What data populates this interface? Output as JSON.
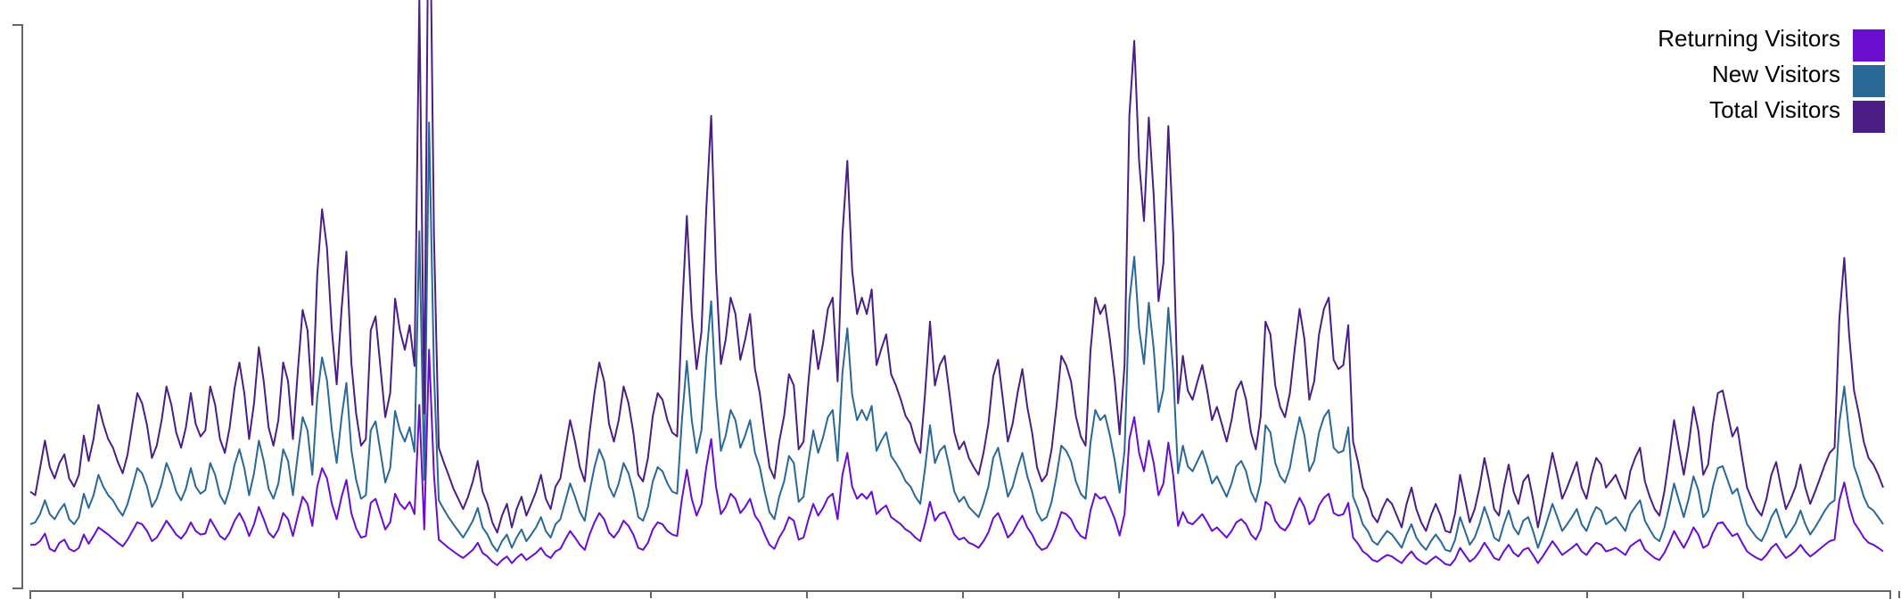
{
  "chart_data": {
    "type": "line",
    "title": "",
    "xlabel": "",
    "ylabel": "",
    "grid": false,
    "legend_position": "top-right",
    "x_tick_count": 12,
    "ylim": [
      0,
      1100
    ],
    "series": [
      {
        "name": "Returning Visitors",
        "color": "#6a0dcf",
        "values": [
          68,
          68,
          75,
          90,
          60,
          55,
          72,
          78,
          60,
          55,
          62,
          88,
          70,
          85,
          102,
          95,
          88,
          80,
          72,
          65,
          78,
          95,
          112,
          108,
          95,
          75,
          82,
          98,
          115,
          102,
          88,
          80,
          92,
          112,
          95,
          88,
          90,
          118,
          102,
          85,
          78,
          92,
          115,
          130,
          112,
          85,
          108,
          142,
          118,
          92,
          82,
          98,
          130,
          118,
          85,
          125,
          162,
          148,
          105,
          182,
          218,
          198,
          148,
          118,
          162,
          195,
          130,
          100,
          82,
          85,
          150,
          158,
          128,
          98,
          112,
          168,
          148,
          138,
          152,
          128,
          342,
          98,
          450,
          205,
          78,
          70,
          62,
          55,
          48,
          42,
          50,
          58,
          72,
          52,
          45,
          35,
          28,
          38,
          45,
          32,
          42,
          50,
          38,
          45,
          52,
          62,
          48,
          42,
          55,
          60,
          78,
          95,
          82,
          68,
          58,
          88,
          112,
          130,
          118,
          92,
          82,
          95,
          115,
          105,
          88,
          62,
          58,
          72,
          98,
          112,
          108,
          95,
          88,
          85,
          158,
          215,
          158,
          125,
          148,
          220,
          275,
          182,
          128,
          142,
          168,
          158,
          130,
          142,
          158,
          125,
          112,
          88,
          68,
          60,
          82,
          98,
          122,
          115,
          78,
          82,
          118,
          148,
          125,
          140,
          160,
          168,
          118,
          205,
          248,
          182,
          158,
          168,
          158,
          172,
          128,
          138,
          145,
          122,
          115,
          108,
          98,
          92,
          82,
          75,
          110,
          152,
          115,
          128,
          132,
          112,
          88,
          78,
          82,
          72,
          68,
          62,
          75,
          92,
          120,
          130,
          108,
          82,
          92,
          110,
          125,
          102,
          88,
          68,
          58,
          62,
          78,
          102,
          132,
          128,
          118,
          98,
          85,
          80,
          135,
          168,
          158,
          162,
          142,
          118,
          86,
          128,
          275,
          318,
          248,
          212,
          272,
          228,
          165,
          188,
          268,
          205,
          105,
          132,
          112,
          108,
          118,
          128,
          112,
          95,
          102,
          92,
          82,
          95,
          112,
          118,
          108,
          88,
          78,
          98,
          152,
          145,
          115,
          102,
          96,
          110,
          138,
          160,
          142,
          108,
          118,
          145,
          160,
          168,
          130,
          125,
          128,
          150,
          82,
          70,
          55,
          48,
          38,
          35,
          42,
          48,
          45,
          38,
          32,
          45,
          55,
          42,
          35,
          30,
          38,
          45,
          38,
          30,
          28,
          40,
          62,
          48,
          35,
          42,
          55,
          72,
          58,
          42,
          38,
          55,
          68,
          52,
          45,
          58,
          62,
          48,
          32,
          45,
          60,
          75,
          62,
          48,
          55,
          62,
          70,
          55,
          48,
          62,
          72,
          68,
          55,
          58,
          62,
          55,
          48,
          65,
          72,
          78,
          58,
          50,
          42,
          38,
          52,
          72,
          95,
          78,
          62,
          80,
          102,
          88,
          62,
          68,
          92,
          110,
          112,
          98,
          85,
          90,
          72,
          55,
          48,
          42,
          38,
          48,
          62,
          70,
          55,
          42,
          48,
          56,
          68,
          55,
          45,
          52,
          60,
          68,
          75,
          78,
          155,
          190,
          145,
          112,
          98,
          82,
          72,
          68,
          62,
          55
        ]
      },
      {
        "name": "New Visitors",
        "color": "#2a6898",
        "values": [
          108,
          112,
          128,
          155,
          128,
          118,
          135,
          148,
          118,
          108,
          122,
          168,
          140,
          165,
          205,
          182,
          165,
          155,
          138,
          125,
          148,
          182,
          218,
          208,
          182,
          142,
          158,
          188,
          228,
          205,
          172,
          155,
          178,
          218,
          182,
          168,
          175,
          228,
          205,
          165,
          148,
          178,
          225,
          255,
          218,
          165,
          208,
          272,
          232,
          178,
          158,
          188,
          255,
          232,
          165,
          245,
          318,
          292,
          205,
          358,
          435,
          390,
          292,
          228,
          318,
          385,
          255,
          195,
          158,
          165,
          292,
          310,
          250,
          190,
          218,
          330,
          292,
          270,
          298,
          250,
          682,
          195,
          895,
          405,
          155,
          138,
          122,
          108,
          95,
          82,
          98,
          115,
          140,
          102,
          88,
          68,
          55,
          75,
          88,
          62,
          82,
          98,
          75,
          88,
          102,
          122,
          95,
          82,
          108,
          118,
          152,
          188,
          162,
          132,
          115,
          172,
          220,
          255,
          232,
          182,
          162,
          188,
          228,
          208,
          172,
          122,
          115,
          142,
          192,
          220,
          212,
          188,
          172,
          168,
          312,
          428,
          312,
          248,
          292,
          435,
          545,
          362,
          252,
          282,
          332,
          312,
          258,
          282,
          312,
          248,
          220,
          172,
          132,
          118,
          162,
          192,
          242,
          228,
          152,
          162,
          232,
          292,
          248,
          278,
          318,
          332,
          232,
          405,
          492,
          362,
          312,
          332,
          312,
          340,
          252,
          272,
          288,
          242,
          228,
          212,
          192,
          182,
          162,
          148,
          218,
          302,
          228,
          252,
          262,
          220,
          172,
          152,
          162,
          142,
          132,
          122,
          148,
          182,
          238,
          258,
          212,
          162,
          182,
          218,
          248,
          202,
          172,
          132,
          115,
          122,
          152,
          202,
          262,
          252,
          232,
          192,
          168,
          158,
          268,
          332,
          312,
          322,
          282,
          232,
          170,
          252,
          545,
          632,
          492,
          422,
          542,
          452,
          328,
          372,
          532,
          408,
          208,
          262,
          222,
          212,
          232,
          252,
          222,
          188,
          202,
          182,
          162,
          188,
          222,
          232,
          212,
          172,
          152,
          192,
          302,
          288,
          228,
          202,
          190,
          218,
          272,
          318,
          282,
          212,
          232,
          288,
          318,
          332,
          258,
          248,
          252,
          298,
          162,
          138,
          108,
          95,
          75,
          68,
          82,
          95,
          88,
          75,
          62,
          88,
          108,
          82,
          68,
          58,
          75,
          88,
          75,
          58,
          55,
          78,
          122,
          95,
          68,
          82,
          108,
          142,
          115,
          82,
          75,
          108,
          135,
          102,
          88,
          115,
          122,
          95,
          62,
          88,
          118,
          148,
          122,
          95,
          108,
          122,
          138,
          108,
          95,
          122,
          142,
          135,
          108,
          115,
          122,
          108,
          95,
          128,
          142,
          155,
          115,
          98,
          82,
          75,
          102,
          142,
          188,
          155,
          122,
          158,
          202,
          175,
          122,
          135,
          182,
          218,
          222,
          195,
          168,
          178,
          142,
          108,
          95,
          82,
          75,
          95,
          122,
          138,
          108,
          82,
          95,
          110,
          135,
          108,
          88,
          102,
          118,
          135,
          148,
          155,
          308,
          378,
          288,
          222,
          195,
          162,
          142,
          135,
          122,
          108
        ]
      },
      {
        "name": "Total Visitors",
        "color": "#4a1e84",
        "values": [
          172,
          165,
          218,
          272,
          220,
          198,
          228,
          245,
          198,
          182,
          205,
          282,
          232,
          275,
          342,
          305,
          275,
          258,
          230,
          208,
          245,
          305,
          365,
          345,
          302,
          238,
          262,
          312,
          378,
          342,
          288,
          258,
          298,
          365,
          305,
          280,
          292,
          378,
          342,
          275,
          248,
          298,
          375,
          425,
          365,
          275,
          345,
          455,
          388,
          298,
          262,
          312,
          425,
          388,
          275,
          408,
          528,
          488,
          342,
          598,
          725,
          650,
          488,
          382,
          530,
          642,
          425,
          325,
          262,
          275,
          488,
          515,
          415,
          318,
          365,
          550,
          488,
          450,
          498,
          418,
          1138,
          325,
          1492,
          675,
          258,
          230,
          205,
          178,
          158,
          138,
          162,
          192,
          232,
          172,
          148,
          112,
          92,
          125,
          148,
          102,
          138,
          162,
          125,
          148,
          172,
          205,
          158,
          138,
          182,
          198,
          255,
          312,
          270,
          220,
          192,
          288,
          365,
          425,
          388,
          305,
          270,
          312,
          378,
          345,
          288,
          205,
          192,
          238,
          320,
          365,
          352,
          312,
          288,
          280,
          520,
          712,
          520,
          412,
          485,
          725,
          908,
          605,
          422,
          470,
          552,
          520,
          430,
          470,
          520,
          412,
          365,
          288,
          220,
          198,
          270,
          320,
          402,
          380,
          255,
          270,
          388,
          488,
          412,
          462,
          530,
          552,
          388,
          675,
          820,
          605,
          520,
          552,
          520,
          568,
          420,
          452,
          480,
          402,
          380,
          352,
          320,
          305,
          270,
          248,
          365,
          505,
          380,
          420,
          438,
          365,
          288,
          255,
          270,
          238,
          220,
          205,
          248,
          305,
          398,
          430,
          352,
          270,
          305,
          365,
          412,
          338,
          288,
          220,
          192,
          205,
          255,
          338,
          438,
          420,
          388,
          320,
          280,
          262,
          448,
          552,
          520,
          538,
          470,
          388,
          284,
          420,
          908,
          1055,
          820,
          702,
          905,
          752,
          545,
          620,
          888,
          680,
          345,
          438,
          370,
          352,
          388,
          420,
          370,
          312,
          338,
          305,
          270,
          312,
          370,
          388,
          352,
          288,
          255,
          320,
          505,
          480,
          380,
          338,
          318,
          365,
          452,
          530,
          470,
          352,
          388,
          480,
          530,
          552,
          430,
          412,
          420,
          498,
          270,
          230,
          180,
          158,
          125,
          112,
          138,
          158,
          148,
          125,
          102,
          148,
          180,
          138,
          112,
          95,
          125,
          148,
          125,
          95,
          92,
          130,
          205,
          158,
          112,
          138,
          180,
          238,
          192,
          138,
          125,
          180,
          225,
          172,
          148,
          192,
          205,
          158,
          102,
          148,
          198,
          248,
          205,
          158,
          180,
          205,
          230,
          180,
          158,
          205,
          238,
          225,
          180,
          192,
          205,
          180,
          158,
          212,
          238,
          258,
          192,
          162,
          138,
          125,
          172,
          238,
          312,
          258,
          205,
          262,
          338,
          292,
          205,
          225,
          305,
          365,
          370,
          325,
          280,
          298,
          238,
          180,
          158,
          138,
          125,
          158,
          205,
          230,
          180,
          138,
          158,
          182,
          225,
          180,
          148,
          172,
          198,
          225,
          248,
          258,
          512,
          630,
          480,
          370,
          325,
          270,
          238,
          225,
          205,
          180
        ]
      }
    ]
  }
}
